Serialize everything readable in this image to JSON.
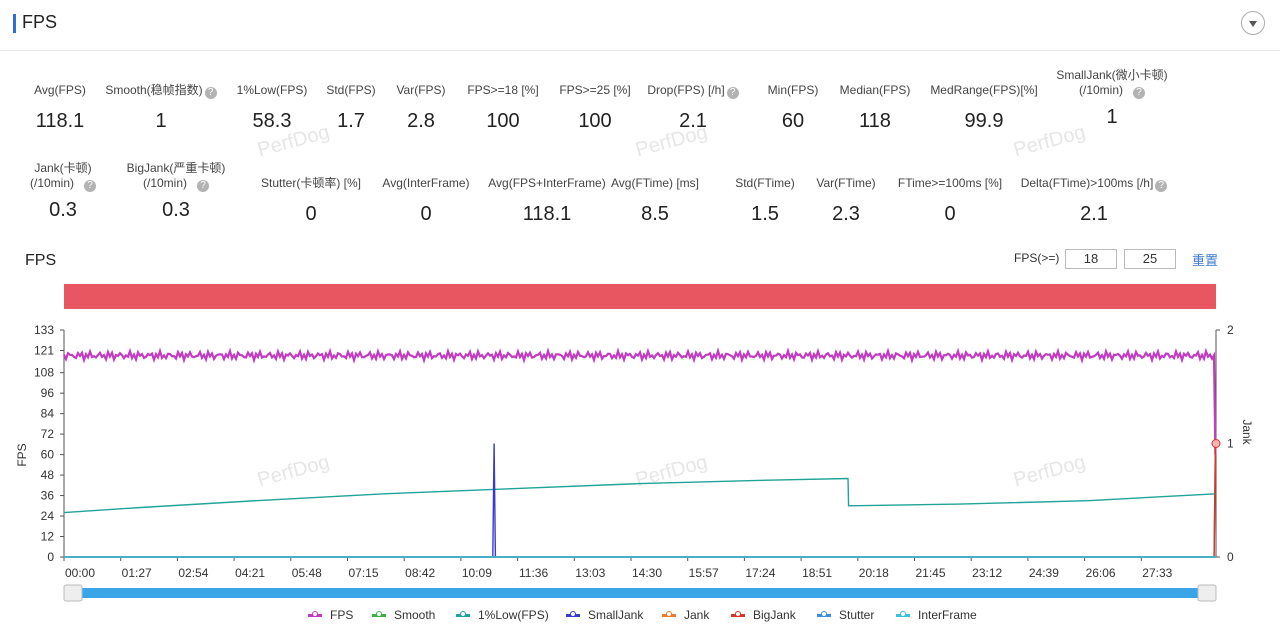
{
  "header": {
    "title": "FPS"
  },
  "metrics_row1": [
    {
      "label": "Avg(FPS)",
      "value": "118.1",
      "help": false
    },
    {
      "label": "Smooth(稳帧指数)",
      "value": "1",
      "help": true
    },
    {
      "label": "1%Low(FPS)",
      "value": "58.3",
      "help": false
    },
    {
      "label": "Std(FPS)",
      "value": "1.7",
      "help": false
    },
    {
      "label": "Var(FPS)",
      "value": "2.8",
      "help": false
    },
    {
      "label": "FPS>=18 [%]",
      "value": "100",
      "help": false
    },
    {
      "label": "FPS>=25 [%]",
      "value": "100",
      "help": false
    },
    {
      "label": "Drop(FPS) [/h]",
      "value": "2.1",
      "help": true
    },
    {
      "label": "Min(FPS)",
      "value": "60",
      "help": false
    },
    {
      "label": "Median(FPS)",
      "value": "118",
      "help": false
    },
    {
      "label": "MedRange(FPS)[%]",
      "value": "99.9",
      "help": false
    },
    {
      "label": "SmallJank(微小卡顿)",
      "label2": "(/10min)",
      "value": "1",
      "help": true
    }
  ],
  "metrics_row2": [
    {
      "label": "Jank(卡顿)",
      "label2": "(/10min)",
      "value": "0.3",
      "help": true
    },
    {
      "label": "BigJank(严重卡顿)",
      "label2": "(/10min)",
      "value": "0.3",
      "help": true
    },
    {
      "label": "Stutter(卡顿率) [%]",
      "value": "0",
      "help": false
    },
    {
      "label": "Avg(InterFrame)",
      "value": "0",
      "help": false
    },
    {
      "label": "Avg(FPS+InterFrame)",
      "value": "118.1",
      "help": false
    },
    {
      "label": "Avg(FTime) [ms]",
      "value": "8.5",
      "help": false
    },
    {
      "label": "Std(FTime)",
      "value": "1.5",
      "help": false
    },
    {
      "label": "Var(FTime)",
      "value": "2.3",
      "help": false
    },
    {
      "label": "FTime>=100ms [%]",
      "value": "0",
      "help": false
    },
    {
      "label": "Delta(FTime)>100ms [/h]",
      "value": "2.1",
      "help": true
    }
  ],
  "watermark": "PerfDog",
  "chart_header": {
    "title": "FPS",
    "fps_label": "FPS(>=)",
    "fps_min1": "18",
    "fps_min2": "25",
    "reset": "重置"
  },
  "chart_data": {
    "type": "line",
    "ylabel": "FPS",
    "y2label": "Jank",
    "ylim": [
      0,
      133
    ],
    "yticks": [
      0,
      12,
      24,
      36,
      48,
      60,
      72,
      84,
      96,
      108,
      121,
      133
    ],
    "y2lim": [
      0,
      2
    ],
    "y2ticks": [
      0,
      1,
      2
    ],
    "xticks": [
      "00:00",
      "01:27",
      "02:54",
      "04:21",
      "05:48",
      "07:15",
      "08:42",
      "10:09",
      "11:36",
      "13:03",
      "14:30",
      "15:57",
      "17:24",
      "18:51",
      "20:18",
      "21:45",
      "23:12",
      "24:39",
      "26:06",
      "27:33"
    ],
    "duration_s": 1800,
    "series": [
      {
        "name": "FPS",
        "color": "#c23bc2",
        "points": [
          [
            0,
            118
          ],
          [
            300,
            118
          ],
          [
            600,
            118
          ],
          [
            900,
            118
          ],
          [
            1200,
            118
          ],
          [
            1500,
            118
          ],
          [
            1798,
            118
          ],
          [
            1799,
            60
          ]
        ]
      },
      {
        "name": "Smooth",
        "color": "#3fae49",
        "points": [
          [
            0,
            0
          ],
          [
            1800,
            0
          ]
        ]
      },
      {
        "name": "1%Low(FPS)",
        "color": "#1fa39a",
        "points": [
          [
            0,
            26
          ],
          [
            120,
            29
          ],
          [
            300,
            33
          ],
          [
            500,
            37
          ],
          [
            700,
            40
          ],
          [
            900,
            43
          ],
          [
            1100,
            45
          ],
          [
            1225,
            46
          ],
          [
            1226,
            30
          ],
          [
            1400,
            31
          ],
          [
            1600,
            33
          ],
          [
            1800,
            37
          ]
        ]
      },
      {
        "name": "SmallJank",
        "color": "#3a3ad0",
        "points": [
          [
            0,
            0
          ],
          [
            670,
            0
          ],
          [
            672,
            1
          ],
          [
            674,
            0
          ],
          [
            1800,
            0
          ]
        ]
      },
      {
        "name": "Jank",
        "color": "#f07a2a",
        "points": [
          [
            0,
            0
          ],
          [
            1797,
            0
          ],
          [
            1799,
            1
          ]
        ]
      },
      {
        "name": "BigJank",
        "color": "#d9332a",
        "points": [
          [
            0,
            0
          ],
          [
            1797,
            0
          ],
          [
            1799,
            1
          ]
        ]
      },
      {
        "name": "Stutter",
        "color": "#3a8fe0",
        "points": [
          [
            0,
            0
          ],
          [
            1800,
            0
          ]
        ]
      },
      {
        "name": "InterFrame",
        "color": "#35c3d6",
        "points": [
          [
            0,
            0
          ],
          [
            1800,
            0
          ]
        ]
      }
    ]
  }
}
